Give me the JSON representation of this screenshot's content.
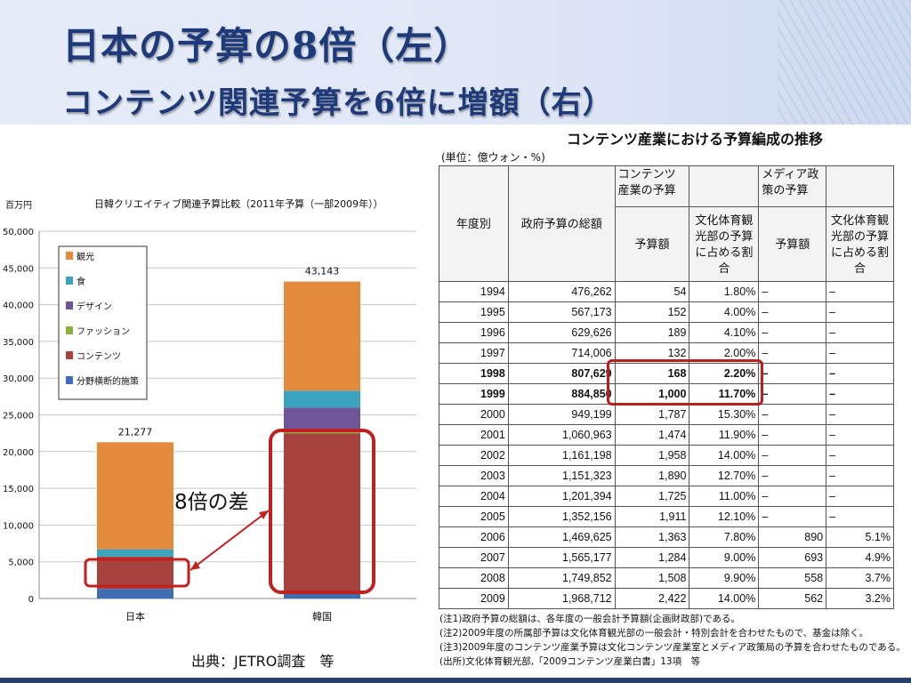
{
  "slide": {
    "title_line1": "日本の予算の8倍（左）",
    "title_line2": "コンテンツ関連予算を6倍に増額（右）",
    "source": "出典：JETRO調査　等"
  },
  "chart_data": {
    "type": "bar",
    "stacked": true,
    "title": "日韓クリエイティブ関連予算比較（2011年予算（一部2009年））",
    "unit_label": "百万円",
    "categories": [
      "日本",
      "韓国"
    ],
    "ylim": [
      0,
      50000
    ],
    "yticks": [
      "0",
      "5,000",
      "10,000",
      "15,000",
      "20,000",
      "25,000",
      "30,000",
      "35,000",
      "40,000",
      "45,000",
      "50,000"
    ],
    "grid": true,
    "legend_position": "top-left",
    "totals": [
      21277,
      43143
    ],
    "total_labels": [
      "21,277",
      "43,143"
    ],
    "series": [
      {
        "name": "分野横断的施策",
        "color": "#3d6eb4",
        "values": [
          1300,
          1000
        ]
      },
      {
        "name": "コンテンツ",
        "color": "#a8423f",
        "values": [
          4400,
          21500
        ]
      },
      {
        "name": "ファッション",
        "color": "#8aae3f",
        "values": [
          0,
          500
        ]
      },
      {
        "name": "デザイン",
        "color": "#6e5599",
        "values": [
          0,
          3000
        ]
      },
      {
        "name": "食",
        "color": "#3ba3bf",
        "values": [
          1000,
          2300
        ]
      },
      {
        "name": "観光",
        "color": "#e38a3c",
        "values": [
          14577,
          14843
        ]
      }
    ],
    "annotation": "8倍の差"
  },
  "table": {
    "title": "コンテンツ産業における予算編成の推移",
    "unit": "(単位：億ウォン・%)",
    "headers": {
      "year": "年度別",
      "gov_total": "政府予算の総額",
      "content_group": "コンテンツ産業の予算",
      "budget": "予算額",
      "ratio": "文化体育観光部の予算に占める割合",
      "media_group": "メディア政策の予算",
      "media_budget": "予算額",
      "media_ratio": "文化体育観光部の予算に占める割合"
    },
    "rows": [
      {
        "year": "1994",
        "total": "476,262",
        "budget": "54",
        "ratio": "1.80%",
        "mbudget": "–",
        "mratio": "–",
        "bold": false
      },
      {
        "year": "1995",
        "total": "567,173",
        "budget": "152",
        "ratio": "4.00%",
        "mbudget": "–",
        "mratio": "–",
        "bold": false
      },
      {
        "year": "1996",
        "total": "629,626",
        "budget": "189",
        "ratio": "4.10%",
        "mbudget": "–",
        "mratio": "–",
        "bold": false
      },
      {
        "year": "1997",
        "total": "714,006",
        "budget": "132",
        "ratio": "2.00%",
        "mbudget": "–",
        "mratio": "–",
        "bold": false
      },
      {
        "year": "1998",
        "total": "807,629",
        "budget": "168",
        "ratio": "2.20%",
        "mbudget": "–",
        "mratio": "–",
        "bold": true
      },
      {
        "year": "1999",
        "total": "884,850",
        "budget": "1,000",
        "ratio": "11.70%",
        "mbudget": "–",
        "mratio": "–",
        "bold": true
      },
      {
        "year": "2000",
        "total": "949,199",
        "budget": "1,787",
        "ratio": "15.30%",
        "mbudget": "–",
        "mratio": "–",
        "bold": false
      },
      {
        "year": "2001",
        "total": "1,060,963",
        "budget": "1,474",
        "ratio": "11.90%",
        "mbudget": "–",
        "mratio": "–",
        "bold": false
      },
      {
        "year": "2002",
        "total": "1,161,198",
        "budget": "1,958",
        "ratio": "14.00%",
        "mbudget": "–",
        "mratio": "–",
        "bold": false
      },
      {
        "year": "2003",
        "total": "1,151,323",
        "budget": "1,890",
        "ratio": "12.70%",
        "mbudget": "–",
        "mratio": "–",
        "bold": false
      },
      {
        "year": "2004",
        "total": "1,201,394",
        "budget": "1,725",
        "ratio": "11.00%",
        "mbudget": "–",
        "mratio": "–",
        "bold": false
      },
      {
        "year": "2005",
        "total": "1,352,156",
        "budget": "1,911",
        "ratio": "12.10%",
        "mbudget": "–",
        "mratio": "–",
        "bold": false
      },
      {
        "year": "2006",
        "total": "1,469,625",
        "budget": "1,363",
        "ratio": "7.80%",
        "mbudget": "890",
        "mratio": "5.1%",
        "bold": false
      },
      {
        "year": "2007",
        "total": "1,565,177",
        "budget": "1,284",
        "ratio": "9.00%",
        "mbudget": "693",
        "mratio": "4.9%",
        "bold": false
      },
      {
        "year": "2008",
        "total": "1,749,852",
        "budget": "1,508",
        "ratio": "9.90%",
        "mbudget": "558",
        "mratio": "3.7%",
        "bold": false
      },
      {
        "year": "2009",
        "total": "1,968,712",
        "budget": "2,422",
        "ratio": "14.00%",
        "mbudget": "562",
        "mratio": "3.2%",
        "bold": false
      }
    ],
    "notes": [
      "(注1)政府予算の総額は、各年度の一般会計予算額(企画財政部)である。",
      "(注2)2009年度の所属部予算は文化体育観光部の一般会計・特別会計を合わせたもので、基金は除く。",
      "(注3)2009年度のコンテンツ産業予算は文化コンテンツ産業室とメディア政策局の予算を合わせたものである。",
      "(出所)文化体育観光部,「2009コンテンツ産業白書」13項　等"
    ]
  }
}
